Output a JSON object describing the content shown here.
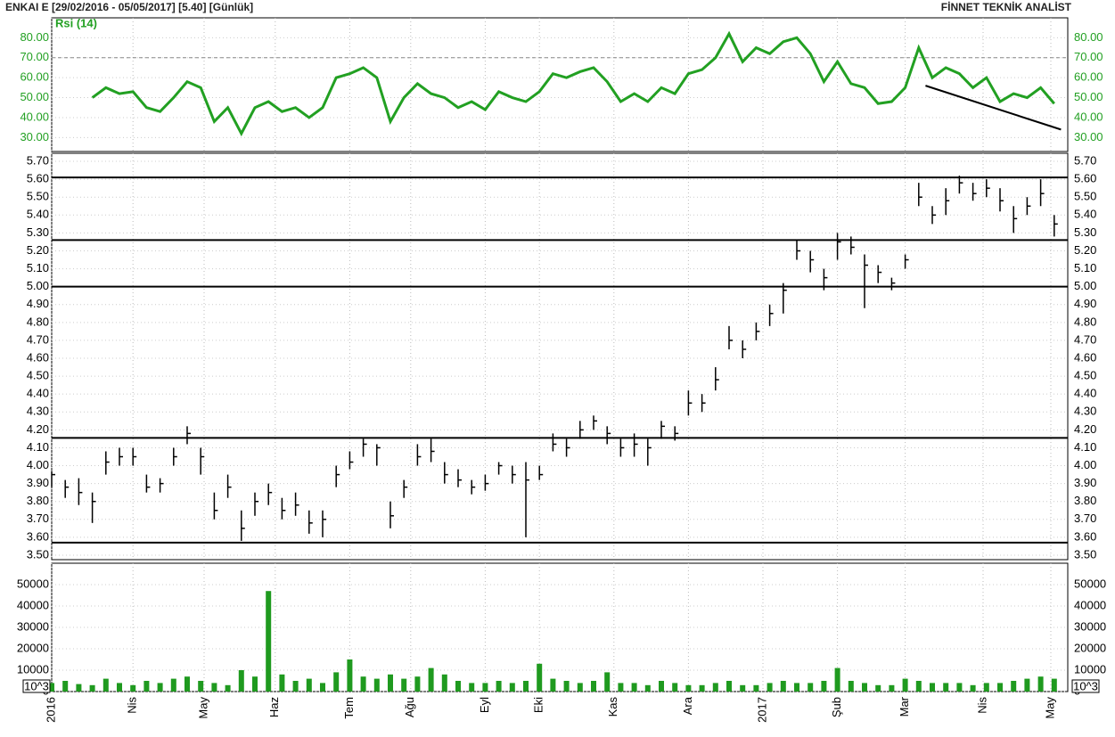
{
  "header": {
    "left": "ENKAI E  [29/02/2016 - 05/05/2017]  [5.40]  [Günlük]",
    "right": "FİNNET TEKNİK ANALİST"
  },
  "x_axis": {
    "x": [
      0,
      4,
      8,
      12,
      16,
      20,
      24,
      28,
      32,
      36,
      40,
      44,
      48,
      52,
      56,
      60,
      64,
      68,
      72,
      76,
      80,
      84,
      88,
      92,
      96,
      100,
      104,
      108,
      112,
      116,
      120,
      124,
      128,
      132,
      136,
      140,
      144,
      148,
      152,
      156,
      160,
      164,
      168,
      172,
      176,
      180,
      184,
      188,
      192,
      196,
      200,
      204,
      208,
      212,
      216,
      220,
      224,
      228,
      232,
      236,
      240,
      244,
      248,
      252,
      256,
      260,
      264,
      268,
      272,
      276,
      280,
      284,
      288,
      292,
      296
    ],
    "xlim": [
      0,
      300
    ],
    "xticks": [
      {
        "value": 0,
        "label": "2016"
      },
      {
        "value": 24,
        "label": "Nis"
      },
      {
        "value": 45,
        "label": "May"
      },
      {
        "value": 66,
        "label": "Haz"
      },
      {
        "value": 88,
        "label": "Tem"
      },
      {
        "value": 106,
        "label": "Ağu"
      },
      {
        "value": 128,
        "label": "Eyl"
      },
      {
        "value": 144,
        "label": "Eki"
      },
      {
        "value": 166,
        "label": "Kas"
      },
      {
        "value": 188,
        "label": "Ara"
      },
      {
        "value": 210,
        "label": "2017"
      },
      {
        "value": 232,
        "label": "Şub"
      },
      {
        "value": 252,
        "label": "Mar"
      },
      {
        "value": 275,
        "label": "Nis"
      },
      {
        "value": 295,
        "label": "May"
      }
    ]
  },
  "chart_data": [
    {
      "type": "line",
      "title": "Rsi (14)",
      "color": "#22a022",
      "ylim": [
        23,
        90
      ],
      "yticks": [
        {
          "value": 30,
          "label": "30.00"
        },
        {
          "value": 40,
          "label": "40.00"
        },
        {
          "value": 50,
          "label": "50.00"
        },
        {
          "value": 60,
          "label": "60.00"
        },
        {
          "value": 70,
          "label": "70.00"
        },
        {
          "value": 80,
          "label": "80.00"
        }
      ],
      "values": [
        null,
        null,
        null,
        50,
        55,
        52,
        53,
        45,
        43,
        50,
        58,
        55,
        38,
        45,
        32,
        45,
        48,
        43,
        45,
        40,
        45,
        60,
        62,
        65,
        60,
        38,
        50,
        57,
        52,
        50,
        45,
        48,
        44,
        53,
        50,
        48,
        53,
        62,
        60,
        63,
        65,
        58,
        48,
        52,
        48,
        55,
        52,
        62,
        64,
        70,
        82,
        68,
        75,
        72,
        78,
        80,
        72,
        58,
        68,
        57,
        55,
        47,
        48,
        55,
        75,
        60,
        65,
        62,
        55,
        60,
        48,
        52,
        50,
        55,
        47
      ],
      "reference": 70,
      "trendline": {
        "x": [
          258,
          298
        ],
        "y": [
          56,
          34
        ]
      }
    },
    {
      "type": "ohlc",
      "ylim": [
        3.475,
        5.745
      ],
      "yticks": [
        {
          "value": 3.5,
          "label": "3.50"
        },
        {
          "value": 3.6,
          "label": "3.60"
        },
        {
          "value": 3.7,
          "label": "3.70"
        },
        {
          "value": 3.8,
          "label": "3.80"
        },
        {
          "value": 3.9,
          "label": "3.90"
        },
        {
          "value": 4.0,
          "label": "4.00"
        },
        {
          "value": 4.1,
          "label": "4.10"
        },
        {
          "value": 4.2,
          "label": "4.20"
        },
        {
          "value": 4.3,
          "label": "4.30"
        },
        {
          "value": 4.4,
          "label": "4.40"
        },
        {
          "value": 4.5,
          "label": "4.50"
        },
        {
          "value": 4.6,
          "label": "4.60"
        },
        {
          "value": 4.7,
          "label": "4.70"
        },
        {
          "value": 4.8,
          "label": "4.80"
        },
        {
          "value": 4.9,
          "label": "4.90"
        },
        {
          "value": 5.0,
          "label": "5.00"
        },
        {
          "value": 5.1,
          "label": "5.10"
        },
        {
          "value": 5.2,
          "label": "5.20"
        },
        {
          "value": 5.3,
          "label": "5.30"
        },
        {
          "value": 5.4,
          "label": "5.40"
        },
        {
          "value": 5.5,
          "label": "5.50"
        },
        {
          "value": 5.6,
          "label": "5.60"
        },
        {
          "value": 5.7,
          "label": "5.70"
        }
      ],
      "high": [
        3.97,
        3.92,
        3.93,
        3.85,
        4.08,
        4.1,
        4.1,
        3.95,
        3.93,
        4.1,
        4.22,
        4.1,
        3.85,
        3.95,
        3.75,
        3.85,
        3.9,
        3.82,
        3.85,
        3.75,
        3.75,
        4.0,
        4.08,
        4.15,
        4.12,
        3.8,
        3.92,
        4.12,
        4.15,
        4.02,
        3.98,
        3.92,
        3.95,
        4.02,
        4.0,
        4.02,
        4.0,
        4.18,
        4.15,
        4.25,
        4.28,
        4.22,
        4.15,
        4.18,
        4.15,
        4.25,
        4.22,
        4.42,
        4.4,
        4.55,
        4.78,
        4.7,
        4.8,
        4.9,
        5.02,
        5.26,
        5.2,
        5.1,
        5.3,
        5.28,
        5.18,
        5.12,
        5.05,
        5.18,
        5.58,
        5.45,
        5.55,
        5.62,
        5.58,
        5.6,
        5.55,
        5.45,
        5.5,
        5.6,
        5.4
      ],
      "low": [
        3.88,
        3.82,
        3.78,
        3.68,
        3.95,
        4.0,
        4.0,
        3.85,
        3.85,
        4.0,
        4.12,
        3.95,
        3.7,
        3.82,
        3.58,
        3.72,
        3.78,
        3.7,
        3.72,
        3.62,
        3.6,
        3.88,
        3.98,
        4.05,
        4.0,
        3.65,
        3.82,
        4.0,
        4.02,
        3.9,
        3.88,
        3.84,
        3.86,
        3.95,
        3.9,
        3.6,
        3.92,
        4.08,
        4.05,
        4.15,
        4.2,
        4.12,
        4.05,
        4.05,
        4.0,
        4.15,
        4.14,
        4.28,
        4.3,
        4.42,
        4.65,
        4.6,
        4.7,
        4.78,
        4.85,
        5.15,
        5.08,
        4.98,
        5.15,
        5.18,
        4.88,
        5.02,
        4.98,
        5.1,
        5.45,
        5.35,
        5.4,
        5.52,
        5.48,
        5.5,
        5.42,
        5.3,
        5.4,
        5.45,
        5.28
      ],
      "close": [
        3.95,
        3.88,
        3.85,
        3.8,
        4.02,
        4.05,
        4.05,
        3.88,
        3.9,
        4.05,
        4.18,
        4.05,
        3.75,
        3.88,
        3.65,
        3.8,
        3.85,
        3.75,
        3.78,
        3.68,
        3.7,
        3.95,
        4.02,
        4.12,
        4.1,
        3.72,
        3.88,
        4.05,
        4.08,
        3.95,
        3.92,
        3.88,
        3.9,
        4.0,
        3.95,
        3.92,
        3.95,
        4.12,
        4.1,
        4.2,
        4.25,
        4.18,
        4.1,
        4.12,
        4.1,
        4.22,
        4.18,
        4.35,
        4.35,
        4.48,
        4.7,
        4.65,
        4.75,
        4.85,
        4.98,
        5.2,
        5.15,
        5.05,
        5.25,
        5.22,
        5.12,
        5.08,
        5.02,
        5.15,
        5.5,
        5.4,
        5.48,
        5.58,
        5.52,
        5.55,
        5.48,
        5.38,
        5.45,
        5.52,
        5.35
      ],
      "hlines": [
        5.61,
        5.26,
        5.0,
        4.155,
        3.57
      ]
    },
    {
      "type": "bar",
      "color": "#1f9a1f",
      "unit_label": "10^3",
      "ylim": [
        0,
        60000
      ],
      "yticks": [
        0,
        10000,
        20000,
        30000,
        40000,
        50000
      ],
      "values": [
        4000,
        5000,
        3500,
        3000,
        6000,
        4000,
        3000,
        5000,
        4000,
        6000,
        7000,
        5000,
        4000,
        3000,
        10000,
        7000,
        47000,
        8000,
        5000,
        6000,
        4000,
        9000,
        15000,
        7000,
        6000,
        8000,
        6000,
        7000,
        11000,
        8000,
        5000,
        4000,
        4000,
        5000,
        4000,
        5000,
        13000,
        6000,
        5000,
        4000,
        5000,
        9000,
        4000,
        4000,
        3000,
        5000,
        4000,
        3000,
        3000,
        4000,
        5000,
        3000,
        3000,
        4000,
        5000,
        4000,
        4000,
        5000,
        11000,
        5000,
        4000,
        3000,
        3000,
        6000,
        5000,
        4000,
        4000,
        4000,
        3000,
        4000,
        4000,
        5000,
        6000,
        7000,
        6000
      ]
    }
  ]
}
